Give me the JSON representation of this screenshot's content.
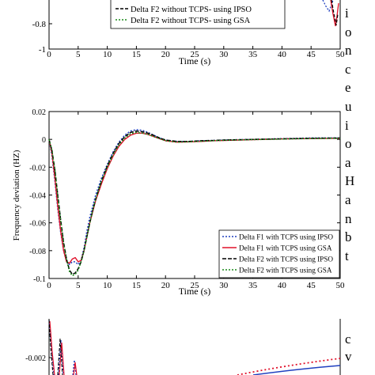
{
  "top_figure": {
    "y_ticks": [
      "-0.8",
      "-1"
    ],
    "x_ticks": [
      "0",
      "5",
      "10",
      "15",
      "20",
      "25",
      "30",
      "35",
      "40",
      "45",
      "50"
    ],
    "xlabel": "Time (s)",
    "legend_partial": [
      {
        "label": "Delta F2 without TCPS- using IPSO",
        "color": "#000000",
        "dash": "4,2"
      },
      {
        "label": "Delta F2 without TCPS- using GSA",
        "color": "#1a8a1a",
        "dash": "2,2"
      }
    ]
  },
  "chart_data": [
    {
      "type": "line",
      "xlabel": "Time (s)",
      "ylabel": "Frequency deviation (HZ)",
      "xlim": [
        0,
        50
      ],
      "ylim": [
        -0.1,
        0.02
      ],
      "x_ticks": [
        "0",
        "5",
        "10",
        "15",
        "20",
        "25",
        "30",
        "35",
        "40",
        "45",
        "50"
      ],
      "y_ticks": [
        "0.02",
        "0",
        "-0.02",
        "-0.04",
        "-0.06",
        "-0.08",
        "-0.1"
      ],
      "legend_position": "lower-right",
      "series": [
        {
          "name": "Delta F1 with TCPS using IPSO",
          "color": "#1f3fbf",
          "dash": "2,2",
          "x": [
            0,
            0.5,
            1,
            1.5,
            2,
            2.5,
            3,
            3.5,
            4,
            4.5,
            5,
            5.5,
            6,
            6.5,
            7,
            7.5,
            8,
            9,
            10,
            11,
            12,
            13,
            14,
            15,
            16,
            17,
            18,
            19,
            20,
            22,
            24,
            26,
            28,
            30,
            35,
            40,
            45,
            50
          ],
          "y": [
            0,
            -0.012,
            -0.03,
            -0.05,
            -0.067,
            -0.08,
            -0.088,
            -0.09,
            -0.088,
            -0.088,
            -0.09,
            -0.087,
            -0.078,
            -0.066,
            -0.056,
            -0.048,
            -0.04,
            -0.028,
            -0.018,
            -0.009,
            -0.002,
            0.003,
            0.006,
            0.007,
            0.0065,
            0.005,
            0.003,
            0.001,
            -0.0005,
            -0.0015,
            -0.0015,
            -0.001,
            -0.0008,
            -0.0005,
            0,
            0.0005,
            0.001,
            0.001
          ]
        },
        {
          "name": "Delta F1 with TCPS using GSA",
          "color": "#e0102a",
          "dash": "",
          "x": [
            0,
            0.5,
            1,
            1.5,
            2,
            2.5,
            3,
            3.5,
            4,
            4.5,
            5,
            5.5,
            6,
            6.5,
            7,
            7.5,
            8,
            9,
            10,
            11,
            12,
            13,
            14,
            15,
            16,
            17,
            18,
            19,
            20,
            22,
            24,
            26,
            28,
            30,
            35,
            40,
            45,
            50
          ],
          "y": [
            0,
            -0.01,
            -0.028,
            -0.048,
            -0.066,
            -0.08,
            -0.088,
            -0.089,
            -0.086,
            -0.085,
            -0.088,
            -0.087,
            -0.08,
            -0.07,
            -0.06,
            -0.052,
            -0.044,
            -0.032,
            -0.021,
            -0.012,
            -0.005,
            0,
            0.003,
            0.0045,
            0.0045,
            0.0035,
            0.002,
            0.0005,
            -0.001,
            -0.002,
            -0.0018,
            -0.0015,
            -0.001,
            -0.0008,
            -0.0002,
            0.0003,
            0.0006,
            0.0008
          ]
        },
        {
          "name": "Delta F2 with TCPS using IPSO",
          "color": "#000000",
          "dash": "5,2",
          "x": [
            0,
            0.5,
            1,
            1.5,
            2,
            2.5,
            3,
            3.5,
            4,
            4.5,
            5,
            5.5,
            6,
            6.5,
            7,
            7.5,
            8,
            9,
            10,
            11,
            12,
            13,
            14,
            15,
            16,
            17,
            18,
            19,
            20,
            22,
            24,
            26,
            28,
            30,
            35,
            40,
            45,
            50
          ],
          "y": [
            0,
            -0.008,
            -0.022,
            -0.04,
            -0.058,
            -0.074,
            -0.086,
            -0.094,
            -0.097,
            -0.096,
            -0.093,
            -0.088,
            -0.08,
            -0.07,
            -0.06,
            -0.051,
            -0.043,
            -0.03,
            -0.019,
            -0.01,
            -0.003,
            0.002,
            0.005,
            0.006,
            0.0055,
            0.0045,
            0.0028,
            0.001,
            -0.0005,
            -0.0015,
            -0.0015,
            -0.001,
            -0.0008,
            -0.0005,
            0,
            0.0004,
            0.0008,
            0.001
          ]
        },
        {
          "name": "Delta F2 with TCPS using GSA",
          "color": "#1a8a1a",
          "dash": "2,2",
          "x": [
            0,
            0.5,
            1,
            1.5,
            2,
            2.5,
            3,
            3.5,
            4,
            4.5,
            5,
            5.5,
            6,
            6.5,
            7,
            7.5,
            8,
            9,
            10,
            11,
            12,
            13,
            14,
            15,
            16,
            17,
            18,
            19,
            20,
            22,
            24,
            26,
            28,
            30,
            35,
            40,
            45,
            50
          ],
          "y": [
            0,
            -0.008,
            -0.022,
            -0.041,
            -0.059,
            -0.075,
            -0.087,
            -0.095,
            -0.098,
            -0.097,
            -0.094,
            -0.088,
            -0.08,
            -0.07,
            -0.06,
            -0.051,
            -0.043,
            -0.03,
            -0.02,
            -0.011,
            -0.004,
            0.001,
            0.004,
            0.005,
            0.0045,
            0.0035,
            0.002,
            0.0005,
            -0.001,
            -0.002,
            -0.0018,
            -0.0014,
            -0.001,
            -0.0007,
            -0.0002,
            0.0002,
            0.0006,
            0.0008
          ]
        }
      ]
    }
  ],
  "bottom_figure": {
    "y_ticks": [
      "-0.002"
    ]
  },
  "side_text": {
    "letters_top": [
      "i",
      "o",
      "n",
      "c",
      "e",
      "u",
      "i",
      "o",
      "a",
      "H",
      "a",
      "n",
      "b",
      "t"
    ],
    "letters_bottom": [
      "c",
      "v"
    ]
  }
}
